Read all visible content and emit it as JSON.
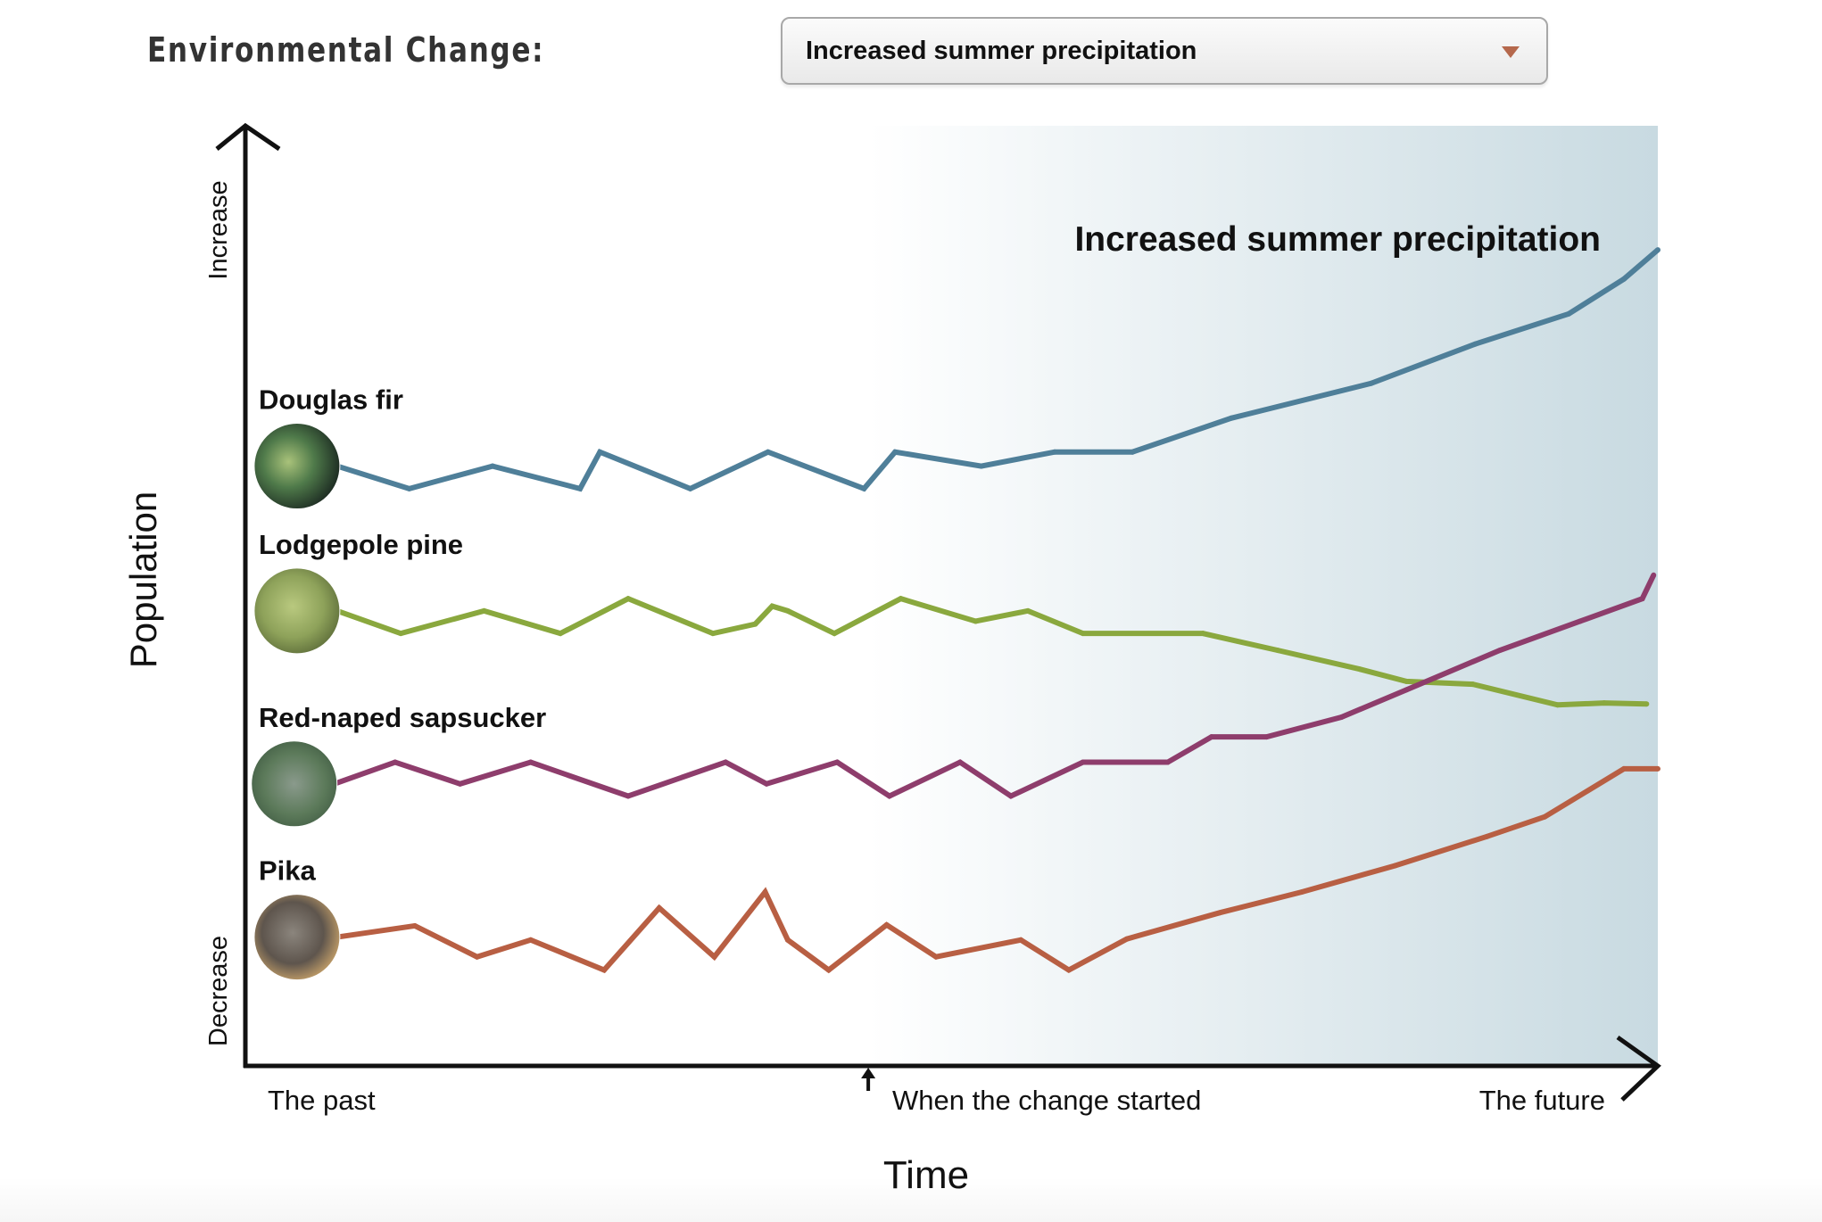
{
  "header": {
    "label": "Environmental Change:",
    "dropdown": {
      "selected": "Increased summer precipitation",
      "caret_icon": "chevron-down-icon",
      "caret_color": "#b5684c"
    }
  },
  "chart_data": {
    "type": "line",
    "title": "Increased summer precipitation",
    "xlabel": "Time",
    "ylabel": "Population",
    "y_axis_ends": {
      "top": "Increase",
      "bottom": "Decrease"
    },
    "x_ticks": [
      {
        "label": "The past",
        "t": 0
      },
      {
        "label": "When the change started",
        "t": 44.1
      },
      {
        "label": "The future",
        "t": 100
      }
    ],
    "xlim": [
      0,
      100
    ],
    "ylim": [
      0,
      100
    ],
    "shaded_region": {
      "from": 44.1,
      "to": 100,
      "color_start": "#ffffff",
      "color_end": "#c8dae1"
    },
    "grid": false,
    "series": [
      {
        "name": "Douglas fir",
        "color": "#4f7f99",
        "icon": "douglas-fir-photo",
        "t": [
          6.5,
          11.6,
          17.5,
          23.7,
          25.1,
          31.5,
          37.0,
          43.8,
          46.0,
          52.1,
          57.3,
          62.8,
          69.8,
          79.7,
          87.1,
          93.7,
          97.6,
          100
        ],
        "p": [
          63.8,
          61.4,
          63.8,
          61.4,
          65.3,
          61.4,
          65.3,
          61.4,
          65.3,
          63.8,
          65.3,
          65.3,
          68.9,
          72.6,
          76.8,
          80.0,
          83.7,
          86.8
        ]
      },
      {
        "name": "Lodgepole pine",
        "color": "#8aa83e",
        "icon": "lodgepole-pine-photo",
        "t": [
          6.5,
          11.0,
          16.9,
          22.3,
          27.1,
          33.1,
          36.1,
          37.3,
          38.4,
          41.7,
          46.4,
          51.7,
          55.4,
          59.3,
          67.8,
          73.1,
          78.9,
          82.2,
          86.9,
          92.9,
          96.2,
          99.2
        ],
        "p": [
          48.4,
          46.0,
          48.4,
          46.0,
          49.7,
          46.0,
          47.0,
          48.9,
          48.4,
          46.0,
          49.7,
          47.3,
          48.4,
          46.0,
          46.0,
          44.2,
          42.2,
          40.9,
          40.6,
          38.4,
          38.6,
          38.5
        ]
      },
      {
        "name": "Red-naped sapsucker",
        "color": "#8e3d6c",
        "icon": "sapsucker-photo",
        "t": [
          6.3,
          10.6,
          15.2,
          20.2,
          27.1,
          34.0,
          36.9,
          41.9,
          45.6,
          50.6,
          54.2,
          59.3,
          65.3,
          68.4,
          72.3,
          77.6,
          82.2,
          88.8,
          94.5,
          98.9,
          99.7
        ],
        "p": [
          30.0,
          32.3,
          30.0,
          32.3,
          28.7,
          32.3,
          30.0,
          32.3,
          28.7,
          32.3,
          28.7,
          32.3,
          32.3,
          35.0,
          35.0,
          37.1,
          40.0,
          44.2,
          47.3,
          49.7,
          52.2
        ]
      },
      {
        "name": "Pika",
        "color": "#b85f43",
        "icon": "pika-photo",
        "t": [
          6.5,
          12.0,
          16.4,
          20.2,
          25.4,
          29.3,
          33.2,
          36.8,
          38.4,
          41.3,
          45.4,
          48.9,
          54.9,
          58.3,
          62.4,
          69.0,
          74.8,
          81.4,
          87.9,
          92.0,
          97.6,
          100
        ],
        "p": [
          13.7,
          14.9,
          11.6,
          13.4,
          10.2,
          16.8,
          11.6,
          18.5,
          13.4,
          10.2,
          15.0,
          11.6,
          13.4,
          10.2,
          13.5,
          16.3,
          18.5,
          21.3,
          24.4,
          26.5,
          31.6,
          31.6
        ]
      }
    ]
  }
}
